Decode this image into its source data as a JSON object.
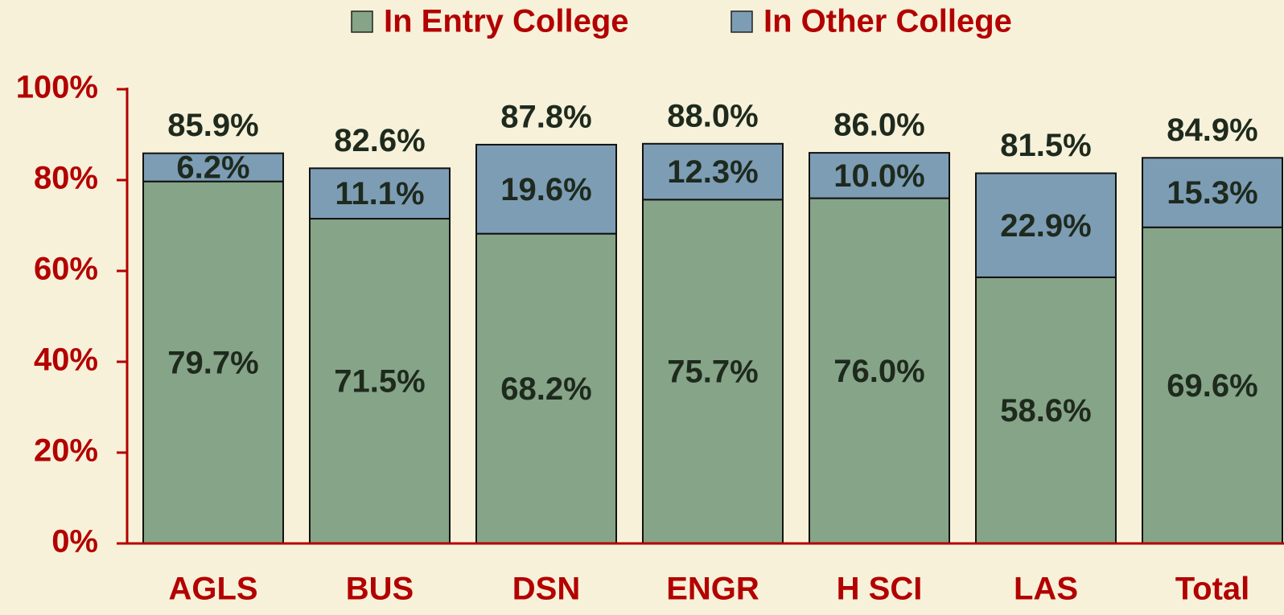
{
  "chart_data": {
    "type": "stacked_bar",
    "categories": [
      "AGLS",
      "BUS",
      "DSN",
      "ENGR",
      "H SCI",
      "LAS",
      "Total"
    ],
    "series": [
      {
        "name": "In Entry College",
        "color": "#86a487",
        "values": [
          79.7,
          71.5,
          68.2,
          75.7,
          76.0,
          58.6,
          69.6
        ],
        "value_labels": [
          "79.7%",
          "71.5%",
          "68.2%",
          "75.7%",
          "76.0%",
          "58.6%",
          "69.6%"
        ]
      },
      {
        "name": "In Other College",
        "color": "#7d9db5",
        "values": [
          6.2,
          11.1,
          19.6,
          12.3,
          10.0,
          22.9,
          15.3
        ],
        "value_labels": [
          "6.2%",
          "11.1%",
          "19.6%",
          "12.3%",
          "10.0%",
          "22.9%",
          "15.3%"
        ]
      }
    ],
    "totals": [
      85.9,
      82.6,
      87.8,
      88.0,
      86.0,
      81.5,
      84.9
    ],
    "total_labels": [
      "85.9%",
      "82.6%",
      "87.8%",
      "88.0%",
      "86.0%",
      "81.5%",
      "84.9%"
    ],
    "ylim": [
      0,
      100
    ],
    "yticks": [
      {
        "value": 0,
        "label": "0%"
      },
      {
        "value": 20,
        "label": "20%"
      },
      {
        "value": 40,
        "label": "40%"
      },
      {
        "value": 60,
        "label": "60%"
      },
      {
        "value": 80,
        "label": "80%"
      },
      {
        "value": 100,
        "label": "100%"
      }
    ],
    "legend": "top"
  }
}
